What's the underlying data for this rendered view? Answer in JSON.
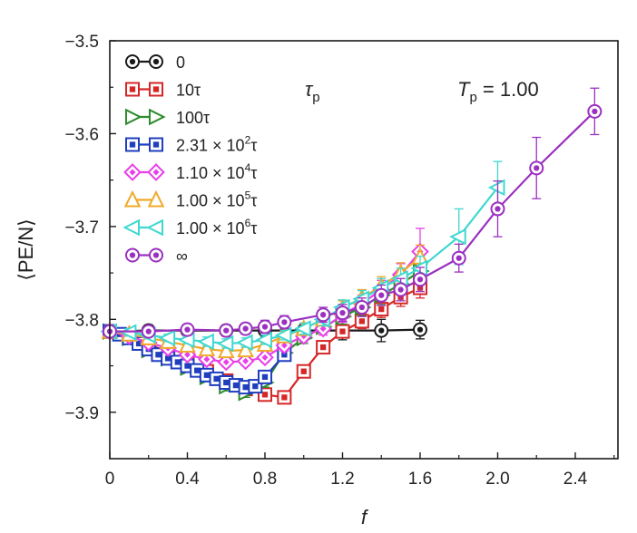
{
  "chart_data": {
    "type": "line",
    "xlabel": "f",
    "ylabel": "⟨PE/N⟩",
    "xlim": [
      0,
      2.62
    ],
    "ylim": [
      -3.95,
      -3.5
    ],
    "x_ticks": [
      "0",
      "0.4",
      "0.8",
      "1.2",
      "1.6",
      "2.0",
      "2.4"
    ],
    "x_tick_values": [
      0,
      0.4,
      0.8,
      1.2,
      1.6,
      2.0,
      2.4
    ],
    "y_ticks": [
      "−3.5",
      "−3.6",
      "−3.7",
      "−3.8",
      "−3.9"
    ],
    "y_tick_values": [
      -3.5,
      -3.6,
      -3.7,
      -3.8,
      -3.9
    ],
    "annotations": {
      "tau_label": "τ",
      "tau_sub": "p",
      "temp_label": "T",
      "temp_sub": "p",
      "temp_value": " = 1.00"
    },
    "legend_position": "top-left",
    "series": [
      {
        "name": "0",
        "legend": [
          {
            "t": "0"
          }
        ],
        "color": "#1a1a1a",
        "marker": "circle",
        "points": [
          [
            0.0,
            -3.813,
            0.006
          ],
          [
            0.2,
            -3.812,
            0.006
          ],
          [
            0.4,
            -3.812,
            0.006
          ],
          [
            0.6,
            -3.812,
            0.006
          ],
          [
            0.8,
            -3.812,
            0.006
          ],
          [
            1.0,
            -3.812,
            0.006
          ],
          [
            1.2,
            -3.812,
            0.01
          ],
          [
            1.4,
            -3.812,
            0.012
          ],
          [
            1.6,
            -3.811,
            0.01
          ]
        ]
      },
      {
        "name": "10τ",
        "legend": [
          {
            "t": "10τ"
          }
        ],
        "color": "#d62728",
        "marker": "square",
        "points": [
          [
            0.0,
            -3.813,
            0.004
          ],
          [
            0.1,
            -3.817,
            0.004
          ],
          [
            0.2,
            -3.826,
            0.004
          ],
          [
            0.3,
            -3.836,
            0.005
          ],
          [
            0.4,
            -3.846,
            0.005
          ],
          [
            0.5,
            -3.856,
            0.005
          ],
          [
            0.6,
            -3.866,
            0.005
          ],
          [
            0.7,
            -3.875,
            0.005
          ],
          [
            0.8,
            -3.881,
            0.005
          ],
          [
            0.9,
            -3.884,
            0.005
          ],
          [
            1.0,
            -3.856,
            0.006
          ],
          [
            1.1,
            -3.83,
            0.006
          ],
          [
            1.2,
            -3.813,
            0.007
          ],
          [
            1.3,
            -3.802,
            0.008
          ],
          [
            1.4,
            -3.789,
            0.009
          ],
          [
            1.5,
            -3.776,
            0.01
          ],
          [
            1.6,
            -3.766,
            0.011
          ]
        ]
      },
      {
        "name": "100τ",
        "legend": [
          {
            "t": "100τ"
          }
        ],
        "color": "#2e8b2e",
        "marker": "triangle-right",
        "points": [
          [
            0.0,
            -3.813,
            0.004
          ],
          [
            0.1,
            -3.82,
            0.004
          ],
          [
            0.2,
            -3.833,
            0.005
          ],
          [
            0.3,
            -3.842,
            0.005
          ],
          [
            0.4,
            -3.852,
            0.005
          ],
          [
            0.5,
            -3.862,
            0.005
          ],
          [
            0.6,
            -3.872,
            0.005
          ],
          [
            0.7,
            -3.879,
            0.005
          ],
          [
            0.8,
            -3.868,
            0.005
          ],
          [
            0.9,
            -3.836,
            0.006
          ],
          [
            1.0,
            -3.82,
            0.006
          ],
          [
            1.1,
            -3.808,
            0.007
          ],
          [
            1.2,
            -3.797,
            0.008
          ],
          [
            1.3,
            -3.787,
            0.009
          ],
          [
            1.4,
            -3.774,
            0.01
          ],
          [
            1.5,
            -3.762,
            0.011
          ],
          [
            1.6,
            -3.748,
            0.012
          ]
        ]
      },
      {
        "name": "2.31 × 10²τ",
        "legend": [
          {
            "t": "2.31 × 10"
          },
          {
            "t": "2",
            "sup": true
          },
          {
            "t": "τ"
          }
        ],
        "color": "#1f3fbf",
        "marker": "square",
        "points": [
          [
            0.0,
            -3.813,
            0.004
          ],
          [
            0.05,
            -3.816,
            0.004
          ],
          [
            0.1,
            -3.82,
            0.004
          ],
          [
            0.15,
            -3.826,
            0.004
          ],
          [
            0.2,
            -3.832,
            0.004
          ],
          [
            0.25,
            -3.838,
            0.004
          ],
          [
            0.3,
            -3.842,
            0.004
          ],
          [
            0.35,
            -3.846,
            0.004
          ],
          [
            0.4,
            -3.85,
            0.004
          ],
          [
            0.45,
            -3.855,
            0.004
          ],
          [
            0.5,
            -3.86,
            0.004
          ],
          [
            0.55,
            -3.864,
            0.004
          ],
          [
            0.6,
            -3.868,
            0.004
          ],
          [
            0.65,
            -3.871,
            0.004
          ],
          [
            0.7,
            -3.873,
            0.004
          ],
          [
            0.75,
            -3.872,
            0.004
          ],
          [
            0.8,
            -3.862,
            0.005
          ],
          [
            0.9,
            -3.838,
            0.006
          ]
        ]
      },
      {
        "name": "1.10 × 10⁴τ",
        "legend": [
          {
            "t": "1.10 × 10"
          },
          {
            "t": "4",
            "sup": true
          },
          {
            "t": "τ"
          }
        ],
        "color": "#e83fe8",
        "marker": "diamond",
        "points": [
          [
            0.0,
            -3.813,
            0.004
          ],
          [
            0.1,
            -3.818,
            0.004
          ],
          [
            0.2,
            -3.825,
            0.005
          ],
          [
            0.3,
            -3.831,
            0.005
          ],
          [
            0.4,
            -3.838,
            0.005
          ],
          [
            0.5,
            -3.843,
            0.005
          ],
          [
            0.6,
            -3.846,
            0.005
          ],
          [
            0.7,
            -3.845,
            0.005
          ],
          [
            0.8,
            -3.841,
            0.005
          ],
          [
            0.9,
            -3.828,
            0.006
          ],
          [
            1.0,
            -3.818,
            0.006
          ],
          [
            1.1,
            -3.81,
            0.007
          ],
          [
            1.2,
            -3.795,
            0.008
          ],
          [
            1.3,
            -3.783,
            0.009
          ],
          [
            1.4,
            -3.768,
            0.01
          ],
          [
            1.5,
            -3.752,
            0.012
          ],
          [
            1.6,
            -3.727,
            0.025
          ]
        ]
      },
      {
        "name": "1.00 × 10⁵τ",
        "legend": [
          {
            "t": "1.00 × 10"
          },
          {
            "t": "5",
            "sup": true
          },
          {
            "t": "τ"
          }
        ],
        "color": "#f0a92a",
        "marker": "triangle-up",
        "points": [
          [
            0.0,
            -3.813,
            0.004
          ],
          [
            0.1,
            -3.816,
            0.004
          ],
          [
            0.2,
            -3.82,
            0.004
          ],
          [
            0.3,
            -3.824,
            0.004
          ],
          [
            0.4,
            -3.828,
            0.005
          ],
          [
            0.5,
            -3.832,
            0.005
          ],
          [
            0.6,
            -3.834,
            0.005
          ],
          [
            0.7,
            -3.833,
            0.005
          ],
          [
            0.8,
            -3.827,
            0.005
          ],
          [
            0.9,
            -3.818,
            0.005
          ],
          [
            1.0,
            -3.81,
            0.006
          ],
          [
            1.1,
            -3.8,
            0.007
          ],
          [
            1.2,
            -3.788,
            0.008
          ],
          [
            1.3,
            -3.777,
            0.009
          ],
          [
            1.4,
            -3.764,
            0.01
          ],
          [
            1.5,
            -3.75,
            0.011
          ],
          [
            1.6,
            -3.733,
            0.013
          ]
        ]
      },
      {
        "name": "1.00 × 10⁶τ",
        "legend": [
          {
            "t": "1.00 × 10"
          },
          {
            "t": "6",
            "sup": true
          },
          {
            "t": "τ"
          }
        ],
        "color": "#3fd8d0",
        "marker": "triangle-left",
        "points": [
          [
            0.0,
            -3.813,
            0.004
          ],
          [
            0.1,
            -3.814,
            0.004
          ],
          [
            0.2,
            -3.817,
            0.004
          ],
          [
            0.3,
            -3.82,
            0.004
          ],
          [
            0.4,
            -3.822,
            0.004
          ],
          [
            0.5,
            -3.824,
            0.005
          ],
          [
            0.6,
            -3.826,
            0.005
          ],
          [
            0.7,
            -3.825,
            0.005
          ],
          [
            0.8,
            -3.822,
            0.005
          ],
          [
            0.9,
            -3.817,
            0.005
          ],
          [
            1.0,
            -3.81,
            0.006
          ],
          [
            1.1,
            -3.8,
            0.007
          ],
          [
            1.2,
            -3.787,
            0.008
          ],
          [
            1.3,
            -3.778,
            0.009
          ],
          [
            1.4,
            -3.766,
            0.01
          ],
          [
            1.5,
            -3.756,
            0.011
          ],
          [
            1.6,
            -3.745,
            0.013
          ],
          [
            1.8,
            -3.711,
            0.03
          ],
          [
            2.0,
            -3.658,
            0.028
          ]
        ]
      },
      {
        "name": "∞",
        "legend": [
          {
            "t": "∞"
          }
        ],
        "color": "#9b30c0",
        "marker": "circle",
        "points": [
          [
            0.0,
            -3.813,
            0.005
          ],
          [
            0.2,
            -3.813,
            0.005
          ],
          [
            0.4,
            -3.811,
            0.006
          ],
          [
            0.6,
            -3.812,
            0.006
          ],
          [
            0.7,
            -3.81,
            0.006
          ],
          [
            0.8,
            -3.808,
            0.007
          ],
          [
            0.9,
            -3.803,
            0.007
          ],
          [
            1.1,
            -3.795,
            0.008
          ],
          [
            1.2,
            -3.793,
            0.009
          ],
          [
            1.3,
            -3.787,
            0.01
          ],
          [
            1.4,
            -3.774,
            0.011
          ],
          [
            1.5,
            -3.768,
            0.012
          ],
          [
            1.6,
            -3.757,
            0.013
          ],
          [
            1.8,
            -3.734,
            0.015
          ],
          [
            2.0,
            -3.681,
            0.03
          ],
          [
            2.2,
            -3.637,
            0.033
          ],
          [
            2.5,
            -3.576,
            0.025
          ]
        ]
      }
    ]
  }
}
